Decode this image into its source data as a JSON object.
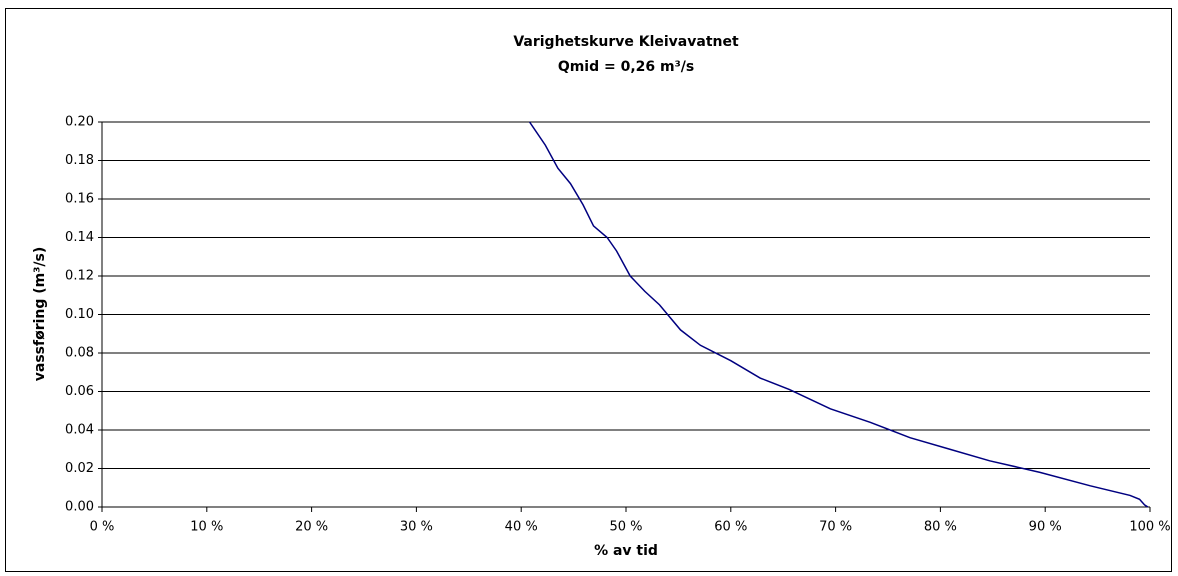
{
  "chart_data": {
    "type": "line",
    "title": "Varighetskurve Kleivavatnet",
    "subtitle": "Qmid = 0,26 m³/s",
    "xlabel": "% av tid",
    "ylabel": "vassføring (m³/s)",
    "color": "#000080",
    "grid": true,
    "xlim": [
      0,
      100
    ],
    "xticks": [
      {
        "value": 0,
        "label": "0 %"
      },
      {
        "value": 10,
        "label": "10 %"
      },
      {
        "value": 20,
        "label": "20 %"
      },
      {
        "value": 30,
        "label": "30 %"
      },
      {
        "value": 40,
        "label": "40 %"
      },
      {
        "value": 50,
        "label": "50 %"
      },
      {
        "value": 60,
        "label": "60 %"
      },
      {
        "value": 70,
        "label": "70 %"
      },
      {
        "value": 80,
        "label": "80 %"
      },
      {
        "value": 90,
        "label": "90 %"
      },
      {
        "value": 100,
        "label": "100 %"
      }
    ],
    "ylim": [
      0,
      0.2
    ],
    "yticks": [
      {
        "value": 0,
        "label": "0.00"
      },
      {
        "value": 0.02,
        "label": "0.02"
      },
      {
        "value": 0.04,
        "label": "0.04"
      },
      {
        "value": 0.06,
        "label": "0.06"
      },
      {
        "value": 0.08,
        "label": "0.08"
      },
      {
        "value": 0.1,
        "label": "0.10"
      },
      {
        "value": 0.12,
        "label": "0.12"
      },
      {
        "value": 0.14,
        "label": "0.14"
      },
      {
        "value": 0.16,
        "label": "0.16"
      },
      {
        "value": 0.18,
        "label": "0.18"
      },
      {
        "value": 0.2,
        "label": "0.20"
      }
    ],
    "x": [
      40.8,
      42.3,
      43.5,
      44.7,
      45.9,
      46.9,
      48.2,
      49.1,
      50.4,
      51.8,
      53.2,
      55.2,
      57.1,
      60,
      62.8,
      65.6,
      69.5,
      73.3,
      77.1,
      80.9,
      84.7,
      89.5,
      94.3,
      98.1,
      99,
      99.5,
      99.8
    ],
    "values": [
      0.2,
      0.188,
      0.176,
      0.168,
      0.157,
      0.146,
      0.14,
      0.133,
      0.12,
      0.112,
      0.105,
      0.092,
      0.084,
      0.076,
      0.067,
      0.061,
      0.051,
      0.044,
      0.036,
      0.03,
      0.024,
      0.018,
      0.011,
      0.006,
      0.004,
      0.001,
      0
    ]
  }
}
